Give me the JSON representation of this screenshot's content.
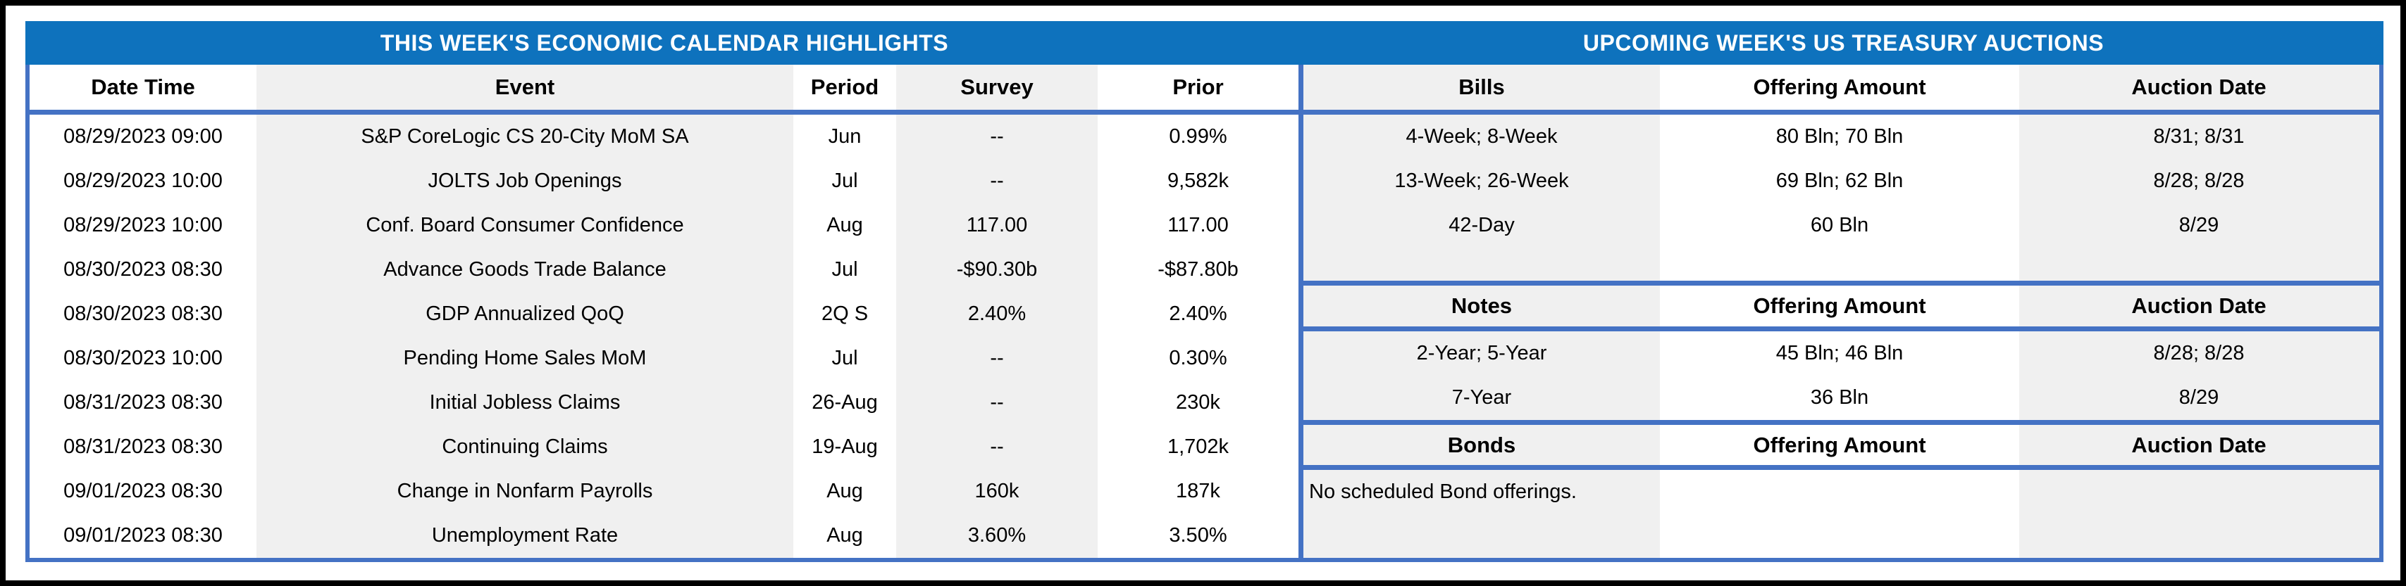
{
  "banner": {
    "calendar_title": "THIS WEEK'S ECONOMIC CALENDAR HIGHLIGHTS",
    "auctions_title": "UPCOMING WEEK'S US TREASURY AUCTIONS"
  },
  "calendar": {
    "headers": {
      "date_time": "Date Time",
      "event": "Event",
      "period": "Period",
      "survey": "Survey",
      "prior": "Prior"
    },
    "rows": [
      {
        "date_time": "08/29/2023 09:00",
        "event": "S&P CoreLogic CS 20-City MoM SA",
        "period": "Jun",
        "survey": "--",
        "prior": "0.99%"
      },
      {
        "date_time": "08/29/2023 10:00",
        "event": "JOLTS Job Openings",
        "period": "Jul",
        "survey": "--",
        "prior": "9,582k"
      },
      {
        "date_time": "08/29/2023 10:00",
        "event": "Conf. Board Consumer Confidence",
        "period": "Aug",
        "survey": "117.00",
        "prior": "117.00"
      },
      {
        "date_time": "08/30/2023 08:30",
        "event": "Advance Goods Trade Balance",
        "period": "Jul",
        "survey": "-$90.30b",
        "prior": "-$87.80b"
      },
      {
        "date_time": "08/30/2023 08:30",
        "event": "GDP Annualized QoQ",
        "period": "2Q S",
        "survey": "2.40%",
        "prior": "2.40%"
      },
      {
        "date_time": "08/30/2023 10:00",
        "event": "Pending Home Sales MoM",
        "period": "Jul",
        "survey": "--",
        "prior": "0.30%"
      },
      {
        "date_time": "08/31/2023 08:30",
        "event": "Initial Jobless Claims",
        "period": "26-Aug",
        "survey": "--",
        "prior": "230k"
      },
      {
        "date_time": "08/31/2023 08:30",
        "event": "Continuing Claims",
        "period": "19-Aug",
        "survey": "--",
        "prior": "1,702k"
      },
      {
        "date_time": "09/01/2023 08:30",
        "event": "Change in Nonfarm Payrolls",
        "period": "Aug",
        "survey": "160k",
        "prior": "187k"
      },
      {
        "date_time": "09/01/2023 08:30",
        "event": "Unemployment Rate",
        "period": "Aug",
        "survey": "3.60%",
        "prior": "3.50%"
      }
    ]
  },
  "auctions": {
    "bills": {
      "headers": {
        "type": "Bills",
        "offering": "Offering Amount",
        "date": "Auction Date"
      },
      "rows": [
        {
          "type": "4-Week; 8-Week",
          "offering": "80 Bln; 70 Bln",
          "date": "8/31; 8/31"
        },
        {
          "type": "13-Week; 26-Week",
          "offering": "69 Bln; 62 Bln",
          "date": "8/28; 8/28"
        },
        {
          "type": "42-Day",
          "offering": "60 Bln",
          "date": "8/29"
        }
      ]
    },
    "notes": {
      "headers": {
        "type": "Notes",
        "offering": "Offering Amount",
        "date": "Auction Date"
      },
      "rows": [
        {
          "type": "2-Year; 5-Year",
          "offering": "45 Bln; 46 Bln",
          "date": "8/28; 8/28"
        },
        {
          "type": "7-Year",
          "offering": "36 Bln",
          "date": "8/29"
        }
      ]
    },
    "bonds": {
      "headers": {
        "type": "Bonds",
        "offering": "Offering Amount",
        "date": "Auction Date"
      },
      "note": "No scheduled Bond offerings."
    }
  },
  "colors": {
    "banner_blue": "#0E72BD",
    "table_border_blue": "#4472C4",
    "column_shade_gray": "#F0F0F0",
    "frame_black": "#000000"
  }
}
